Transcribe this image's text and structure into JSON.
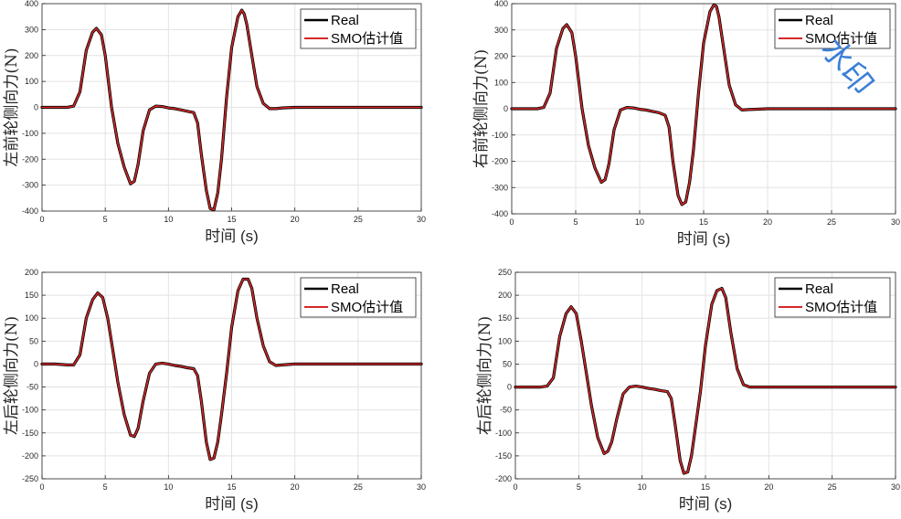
{
  "chart_data": [
    {
      "type": "line",
      "xlabel": "时间 (s)",
      "ylabel": "左前轮侧向力(N)",
      "xlim": [
        0,
        30
      ],
      "ylim": [
        -400,
        400
      ],
      "xticks": [
        "0",
        "5",
        "10",
        "15",
        "20",
        "25",
        "30"
      ],
      "yticks": [
        "-400",
        "-300",
        "-200",
        "-100",
        "0",
        "100",
        "200",
        "300",
        "400"
      ],
      "grid": true,
      "legend_position": "top-right",
      "series": [
        {
          "name": "Real",
          "color": "#000000",
          "x": [
            0,
            1,
            2,
            2.5,
            3,
            3.5,
            4,
            4.3,
            4.7,
            5,
            5.5,
            6,
            6.5,
            7,
            7.3,
            7.6,
            8,
            8.5,
            9,
            9.5,
            10,
            10.5,
            11,
            11.5,
            12,
            12.3,
            12.6,
            13,
            13.3,
            13.6,
            13.9,
            14.2,
            14.6,
            15,
            15.5,
            15.8,
            16,
            16.2,
            16.6,
            17,
            17.5,
            18,
            18.5,
            19,
            20,
            22,
            25,
            30
          ],
          "y": [
            0,
            0,
            0,
            5,
            60,
            220,
            290,
            305,
            280,
            200,
            0,
            -140,
            -230,
            -295,
            -285,
            -220,
            -90,
            -10,
            5,
            3,
            -2,
            -5,
            -10,
            -15,
            -20,
            -60,
            -180,
            -320,
            -390,
            -395,
            -330,
            -200,
            40,
            230,
            350,
            375,
            360,
            320,
            200,
            80,
            15,
            -5,
            -5,
            -2,
            0,
            0,
            0,
            0
          ]
        },
        {
          "name": "SMO估计值",
          "color": "#d62728",
          "x": [
            0,
            1,
            2,
            2.5,
            3,
            3.5,
            4,
            4.3,
            4.7,
            5,
            5.5,
            6,
            6.5,
            7,
            7.3,
            7.6,
            8,
            8.5,
            9,
            9.5,
            10,
            10.5,
            11,
            11.5,
            12,
            12.3,
            12.6,
            13,
            13.3,
            13.6,
            13.9,
            14.2,
            14.6,
            15,
            15.5,
            15.8,
            16,
            16.2,
            16.6,
            17,
            17.5,
            18,
            18.5,
            19,
            20,
            22,
            25,
            30
          ],
          "y": [
            0,
            0,
            0,
            5,
            60,
            220,
            290,
            305,
            280,
            200,
            0,
            -140,
            -230,
            -295,
            -285,
            -220,
            -90,
            -10,
            5,
            3,
            -2,
            -5,
            -10,
            -15,
            -20,
            -60,
            -180,
            -320,
            -390,
            -395,
            -330,
            -200,
            40,
            230,
            350,
            375,
            360,
            320,
            200,
            80,
            15,
            -5,
            -5,
            -2,
            0,
            0,
            0,
            0
          ]
        }
      ]
    },
    {
      "type": "line",
      "xlabel": "时间 (s)",
      "ylabel": "右前轮侧向力(N)",
      "xlim": [
        0,
        30
      ],
      "ylim": [
        -400,
        400
      ],
      "xticks": [
        "0",
        "5",
        "10",
        "15",
        "20",
        "25",
        "30"
      ],
      "yticks": [
        "-400",
        "-300",
        "-200",
        "-100",
        "0",
        "100",
        "200",
        "300",
        "400"
      ],
      "grid": true,
      "legend_position": "top-right",
      "watermark": "水印",
      "series": [
        {
          "name": "Real",
          "color": "#000000",
          "x": [
            0,
            1,
            2,
            2.5,
            3,
            3.5,
            4,
            4.3,
            4.7,
            5,
            5.5,
            6,
            6.5,
            7,
            7.3,
            7.6,
            8,
            8.5,
            9,
            9.5,
            10,
            10.5,
            11,
            11.5,
            12,
            12.3,
            12.6,
            13,
            13.3,
            13.6,
            13.9,
            14.2,
            14.6,
            15,
            15.5,
            15.8,
            16,
            16.2,
            16.6,
            17,
            17.5,
            18,
            18.5,
            19,
            20,
            22,
            25,
            30
          ],
          "y": [
            0,
            0,
            0,
            5,
            60,
            230,
            305,
            320,
            290,
            200,
            0,
            -140,
            -225,
            -280,
            -270,
            -210,
            -80,
            -5,
            5,
            3,
            -2,
            -5,
            -10,
            -15,
            -25,
            -70,
            -200,
            -330,
            -365,
            -355,
            -280,
            -160,
            60,
            250,
            370,
            395,
            390,
            350,
            220,
            90,
            15,
            -5,
            -3,
            -2,
            0,
            0,
            0,
            0
          ]
        },
        {
          "name": "SMO估计值",
          "color": "#d62728",
          "x": [
            0,
            1,
            2,
            2.5,
            3,
            3.5,
            4,
            4.3,
            4.7,
            5,
            5.5,
            6,
            6.5,
            7,
            7.3,
            7.6,
            8,
            8.5,
            9,
            9.5,
            10,
            10.5,
            11,
            11.5,
            12,
            12.3,
            12.6,
            13,
            13.3,
            13.6,
            13.9,
            14.2,
            14.6,
            15,
            15.5,
            15.8,
            16,
            16.2,
            16.6,
            17,
            17.5,
            18,
            18.5,
            19,
            20,
            22,
            25,
            30
          ],
          "y": [
            0,
            0,
            0,
            5,
            60,
            230,
            305,
            320,
            290,
            200,
            0,
            -140,
            -225,
            -280,
            -270,
            -210,
            -80,
            -5,
            5,
            3,
            -2,
            -5,
            -10,
            -15,
            -25,
            -70,
            -200,
            -330,
            -365,
            -355,
            -280,
            -160,
            60,
            250,
            370,
            395,
            390,
            350,
            220,
            90,
            15,
            -5,
            -3,
            -2,
            0,
            0,
            0,
            0
          ]
        }
      ]
    },
    {
      "type": "line",
      "xlabel": "时间 (s)",
      "ylabel": "左后轮侧向力(N)",
      "xlim": [
        0,
        30
      ],
      "ylim": [
        -250,
        200
      ],
      "xticks": [
        "0",
        "5",
        "10",
        "15",
        "20",
        "25",
        "30"
      ],
      "yticks": [
        "-250",
        "-200",
        "-150",
        "-100",
        "-50",
        "0",
        "50",
        "100",
        "150",
        "200"
      ],
      "grid": true,
      "legend_position": "top-right",
      "series": [
        {
          "name": "Real",
          "color": "#000000",
          "x": [
            0,
            1,
            2,
            2.5,
            3,
            3.5,
            4,
            4.4,
            4.8,
            5.2,
            5.6,
            6,
            6.5,
            7,
            7.3,
            7.6,
            8,
            8.5,
            9,
            9.5,
            10,
            10.5,
            11,
            11.5,
            12,
            12.3,
            12.6,
            13,
            13.3,
            13.6,
            13.9,
            14.2,
            14.6,
            15,
            15.5,
            15.9,
            16.3,
            16.6,
            17,
            17.5,
            18,
            18.5,
            19,
            20,
            22,
            25,
            30
          ],
          "y": [
            0,
            0,
            -2,
            -2,
            20,
            100,
            140,
            155,
            145,
            100,
            30,
            -40,
            -110,
            -155,
            -158,
            -140,
            -80,
            -20,
            0,
            2,
            0,
            -3,
            -5,
            -8,
            -10,
            -25,
            -80,
            -170,
            -208,
            -205,
            -170,
            -110,
            -20,
            80,
            160,
            185,
            185,
            165,
            100,
            40,
            5,
            -3,
            -2,
            0,
            0,
            0,
            0
          ]
        },
        {
          "name": "SMO估计值",
          "color": "#d62728",
          "x": [
            0,
            1,
            2,
            2.5,
            3,
            3.5,
            4,
            4.4,
            4.8,
            5.2,
            5.6,
            6,
            6.5,
            7,
            7.3,
            7.6,
            8,
            8.5,
            9,
            9.5,
            10,
            10.5,
            11,
            11.5,
            12,
            12.3,
            12.6,
            13,
            13.3,
            13.6,
            13.9,
            14.2,
            14.6,
            15,
            15.5,
            15.9,
            16.3,
            16.6,
            17,
            17.5,
            18,
            18.5,
            19,
            20,
            22,
            25,
            30
          ],
          "y": [
            0,
            0,
            -2,
            -2,
            20,
            100,
            140,
            155,
            145,
            100,
            30,
            -40,
            -110,
            -155,
            -158,
            -140,
            -80,
            -20,
            0,
            2,
            0,
            -3,
            -5,
            -8,
            -10,
            -25,
            -80,
            -170,
            -208,
            -205,
            -170,
            -110,
            -20,
            80,
            160,
            185,
            185,
            165,
            100,
            40,
            5,
            -3,
            -2,
            0,
            0,
            0,
            0
          ]
        }
      ]
    },
    {
      "type": "line",
      "xlabel": "时间 (s)",
      "ylabel": "右后轮侧向力(N)",
      "xlim": [
        0,
        30
      ],
      "ylim": [
        -200,
        250
      ],
      "xticks": [
        "0",
        "5",
        "10",
        "15",
        "20",
        "25",
        "30"
      ],
      "yticks": [
        "-200",
        "-150",
        "-100",
        "-50",
        "0",
        "50",
        "100",
        "150",
        "200",
        "250"
      ],
      "grid": true,
      "legend_position": "top-right",
      "series": [
        {
          "name": "Real",
          "color": "#000000",
          "x": [
            0,
            1,
            2,
            2.5,
            3,
            3.5,
            4,
            4.4,
            4.8,
            5.2,
            5.6,
            6,
            6.5,
            7,
            7.3,
            7.6,
            8,
            8.5,
            9,
            9.5,
            10,
            10.5,
            11,
            11.5,
            12,
            12.3,
            12.6,
            13,
            13.3,
            13.6,
            13.9,
            14.2,
            14.6,
            15,
            15.5,
            15.9,
            16.3,
            16.6,
            17,
            17.5,
            18,
            18.5,
            19,
            20,
            22,
            25,
            30
          ],
          "y": [
            0,
            0,
            0,
            2,
            20,
            110,
            160,
            175,
            160,
            100,
            30,
            -40,
            -110,
            -145,
            -140,
            -120,
            -70,
            -15,
            0,
            2,
            0,
            -3,
            -5,
            -8,
            -10,
            -25,
            -80,
            -160,
            -188,
            -185,
            -150,
            -90,
            -10,
            90,
            180,
            210,
            215,
            195,
            120,
            40,
            5,
            0,
            0,
            0,
            0,
            0,
            0
          ]
        },
        {
          "name": "SMO估计值",
          "color": "#d62728",
          "x": [
            0,
            1,
            2,
            2.5,
            3,
            3.5,
            4,
            4.4,
            4.8,
            5.2,
            5.6,
            6,
            6.5,
            7,
            7.3,
            7.6,
            8,
            8.5,
            9,
            9.5,
            10,
            10.5,
            11,
            11.5,
            12,
            12.3,
            12.6,
            13,
            13.3,
            13.6,
            13.9,
            14.2,
            14.6,
            15,
            15.5,
            15.9,
            16.3,
            16.6,
            17,
            17.5,
            18,
            18.5,
            19,
            20,
            22,
            25,
            30
          ],
          "y": [
            0,
            0,
            0,
            2,
            20,
            110,
            160,
            175,
            160,
            100,
            30,
            -40,
            -110,
            -145,
            -140,
            -120,
            -70,
            -15,
            0,
            2,
            0,
            -3,
            -5,
            -8,
            -10,
            -25,
            -80,
            -160,
            -188,
            -185,
            -150,
            -90,
            -10,
            90,
            180,
            210,
            215,
            195,
            120,
            40,
            5,
            0,
            0,
            0,
            0,
            0,
            0
          ]
        }
      ]
    }
  ]
}
